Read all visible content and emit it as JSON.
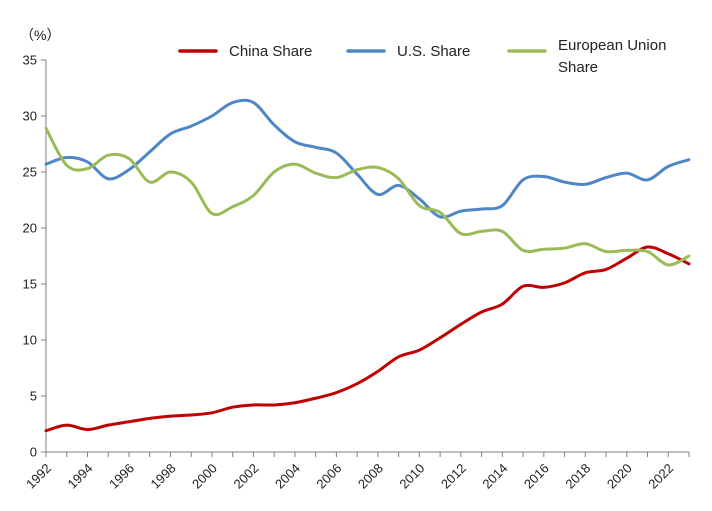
{
  "chart_data": {
    "type": "line",
    "unit_label": "（%）",
    "title": "",
    "xlabel": "",
    "ylabel": "",
    "ylim": [
      0,
      35
    ],
    "yticks": [
      0,
      5,
      10,
      15,
      20,
      25,
      30,
      35
    ],
    "xlim": [
      1992,
      2023
    ],
    "xticks": [
      1992,
      1994,
      1996,
      1998,
      2000,
      2002,
      2004,
      2006,
      2008,
      2010,
      2012,
      2014,
      2016,
      2018,
      2020,
      2022
    ],
    "grid": false,
    "legend_position": "top",
    "x": [
      1992,
      1993,
      1994,
      1995,
      1996,
      1997,
      1998,
      1999,
      2000,
      2001,
      2002,
      2003,
      2004,
      2005,
      2006,
      2007,
      2008,
      2009,
      2010,
      2011,
      2012,
      2013,
      2014,
      2015,
      2016,
      2017,
      2018,
      2019,
      2020,
      2021,
      2022,
      2023
    ],
    "series": [
      {
        "name": "China Share",
        "color": "#c00000",
        "values": [
          1.9,
          2.4,
          2.0,
          2.4,
          2.7,
          3.0,
          3.2,
          3.3,
          3.5,
          4.0,
          4.2,
          4.2,
          4.4,
          4.8,
          5.3,
          6.1,
          7.2,
          8.5,
          9.1,
          10.2,
          11.4,
          12.5,
          13.2,
          14.8,
          14.7,
          15.1,
          16.0,
          16.3,
          17.3,
          18.3,
          17.7,
          16.8
        ]
      },
      {
        "name": "U.S. Share",
        "color": "#4f86c6",
        "values": [
          25.7,
          26.3,
          25.9,
          24.4,
          25.2,
          26.8,
          28.4,
          29.1,
          30.0,
          31.2,
          31.2,
          29.2,
          27.7,
          27.2,
          26.7,
          24.8,
          23.0,
          23.8,
          22.6,
          21.0,
          21.5,
          21.7,
          22.0,
          24.3,
          24.6,
          24.1,
          23.9,
          24.5,
          24.9,
          24.3,
          25.5,
          26.1
        ]
      },
      {
        "name": "European Union Share",
        "color": "#9bbb59",
        "values": [
          28.9,
          25.6,
          25.3,
          26.5,
          26.2,
          24.1,
          25.0,
          24.1,
          21.3,
          21.9,
          22.9,
          25.0,
          25.7,
          24.9,
          24.5,
          25.2,
          25.4,
          24.4,
          22.0,
          21.4,
          19.5,
          19.7,
          19.7,
          18.0,
          18.1,
          18.2,
          18.6,
          17.9,
          18.0,
          17.9,
          16.7,
          17.5
        ]
      }
    ]
  }
}
